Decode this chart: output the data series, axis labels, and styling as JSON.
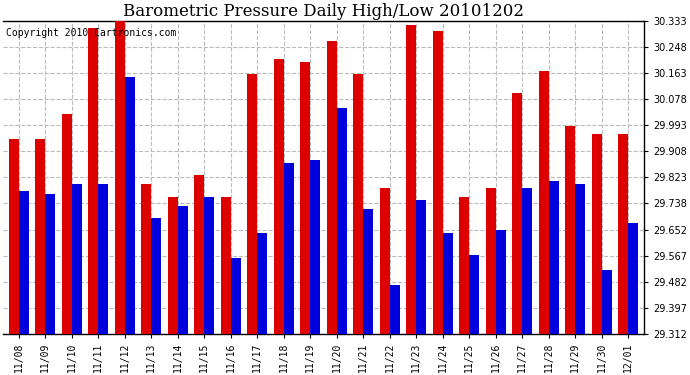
{
  "title": "Barometric Pressure Daily High/Low 20101202",
  "copyright": "Copyright 2010 Cartronics.com",
  "dates": [
    "11/08",
    "11/09",
    "11/10",
    "11/11",
    "11/12",
    "11/13",
    "11/14",
    "11/15",
    "11/16",
    "11/17",
    "11/18",
    "11/19",
    "11/20",
    "11/21",
    "11/22",
    "11/23",
    "11/24",
    "11/25",
    "11/26",
    "11/27",
    "11/28",
    "11/29",
    "11/30",
    "12/01"
  ],
  "highs": [
    29.95,
    29.95,
    30.03,
    30.31,
    30.333,
    29.8,
    29.76,
    29.83,
    29.76,
    30.16,
    30.21,
    30.2,
    30.27,
    30.16,
    29.79,
    30.32,
    30.3,
    29.76,
    29.79,
    30.1,
    30.17,
    29.99,
    29.965,
    29.965
  ],
  "lows": [
    29.78,
    29.77,
    29.8,
    29.8,
    30.15,
    29.69,
    29.73,
    29.76,
    29.56,
    29.64,
    29.87,
    29.88,
    30.05,
    29.72,
    29.47,
    29.75,
    29.64,
    29.57,
    29.65,
    29.79,
    29.81,
    29.8,
    29.52,
    29.675
  ],
  "high_color": "#dd0000",
  "low_color": "#0000dd",
  "background_color": "#ffffff",
  "plot_background": "#ffffff",
  "grid_color": "#bbbbbb",
  "ymin": 29.312,
  "ymax": 30.333,
  "yticks": [
    29.312,
    29.397,
    29.482,
    29.567,
    29.652,
    29.738,
    29.823,
    29.908,
    29.993,
    30.078,
    30.163,
    30.248,
    30.333
  ],
  "title_fontsize": 12,
  "copyright_fontsize": 7,
  "tick_fontsize": 7,
  "ytick_fontsize": 7
}
